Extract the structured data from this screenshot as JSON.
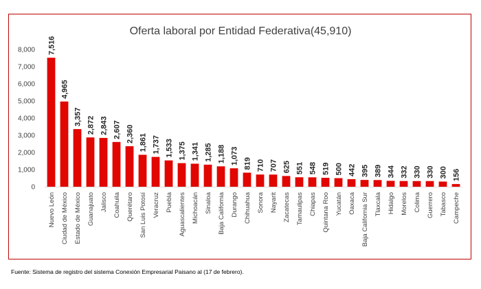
{
  "chart_data": {
    "type": "bar",
    "title": "Oferta laboral por Entidad Federativa(45,910)",
    "xlabel": "",
    "ylabel": "",
    "ylim": [
      0,
      8000
    ],
    "yticks": [
      0,
      1000,
      2000,
      3000,
      4000,
      5000,
      6000,
      7000,
      8000
    ],
    "ytick_labels": [
      "0",
      "1,000",
      "2,000",
      "3,000",
      "4,000",
      "5,000",
      "6,000",
      "7,000",
      "8,000"
    ],
    "grid": false,
    "legend": "none",
    "bar_color": "#e10600",
    "categories": [
      "Nuevo León",
      "Ciudad de México",
      "Estado de México",
      "Guanajuato",
      "Jalisco",
      "Coahuila",
      "Querétaro",
      "San Luis Potosí",
      "Veracruz",
      "Puebla",
      "Aguascalientes",
      "Michoacán",
      "Sinaloa",
      "Baja California",
      "Durango",
      "Chihuahua",
      "Sonora",
      "Nayarit",
      "Zacatecas",
      "Tamaulipas",
      "Chiapas",
      "Quintana Roo",
      "Yucatán",
      "Oaxaca",
      "Baja California Sur",
      "Tlaxcala",
      "Hidalgo",
      "Morelos",
      "Colima",
      "Guerrero",
      "Tabasco",
      "Campeche"
    ],
    "values": [
      7516,
      4965,
      3357,
      2872,
      2843,
      2607,
      2360,
      1861,
      1737,
      1533,
      1375,
      1341,
      1285,
      1188,
      1073,
      819,
      710,
      707,
      625,
      551,
      548,
      519,
      500,
      442,
      395,
      389,
      344,
      332,
      330,
      330,
      300,
      156
    ],
    "value_labels": [
      "7,516",
      "4,965",
      "3,357",
      "2,872",
      "2,843",
      "2,607",
      "2,360",
      "1,861",
      "1,737",
      "1,533",
      "1,375",
      "1,341",
      "1,285",
      "1,188",
      "1,073",
      "819",
      "710",
      "707",
      "625",
      "551",
      "548",
      "519",
      "500",
      "442",
      "395",
      "389",
      "344",
      "332",
      "330",
      "330",
      "300",
      "156"
    ]
  },
  "footer": {
    "source": "Fuente: Sistema de registro del sistema Conexión Empresarial Paisano al (17 de febrero)."
  }
}
